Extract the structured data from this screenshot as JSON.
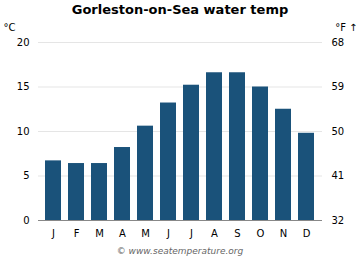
{
  "chart_data": {
    "type": "bar",
    "title": "Gorleston-on-Sea water temp",
    "categories": [
      "J",
      "F",
      "M",
      "A",
      "M",
      "J",
      "J",
      "A",
      "S",
      "O",
      "N",
      "D"
    ],
    "values": [
      6.7,
      6.4,
      6.4,
      8.2,
      10.6,
      13.2,
      15.2,
      16.6,
      16.6,
      15.0,
      12.5,
      9.8
    ],
    "color": "#1a527a",
    "ylabel": "°C",
    "ylim": [
      0,
      20
    ],
    "yticks": [
      0,
      5,
      10,
      15,
      20
    ],
    "y2label": "°F",
    "y2lim": [
      32,
      68
    ],
    "y2ticks": [
      32,
      41,
      50,
      59,
      68
    ],
    "grid": true,
    "annotations": [
      "© www.seatemperature.org"
    ]
  }
}
